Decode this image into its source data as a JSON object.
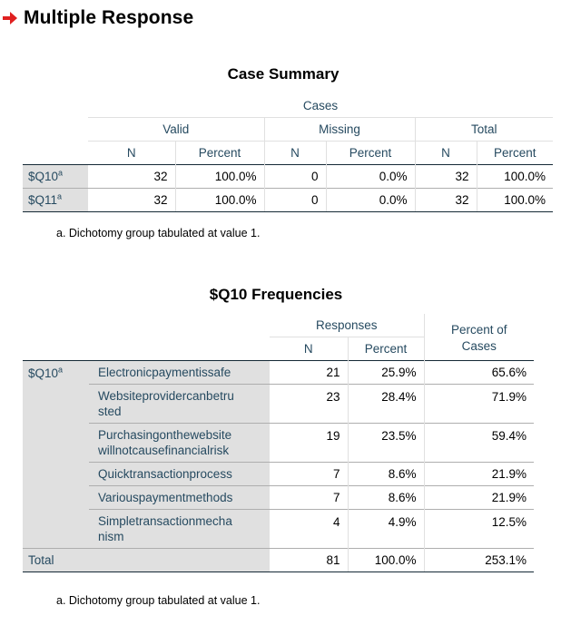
{
  "heading": {
    "title": "Multiple Response",
    "icon": "red-arrow-icon",
    "icon_color": "#e02020"
  },
  "case_summary": {
    "title": "Case Summary",
    "cases_label": "Cases",
    "groups": [
      "Valid",
      "Missing",
      "Total"
    ],
    "col_n": "N",
    "col_percent": "Percent",
    "rows": [
      {
        "label": "$Q10",
        "sup": "a",
        "valid_n": "32",
        "valid_pct": "100.0%",
        "missing_n": "0",
        "missing_pct": "0.0%",
        "total_n": "32",
        "total_pct": "100.0%"
      },
      {
        "label": "$Q11",
        "sup": "a",
        "valid_n": "32",
        "valid_pct": "100.0%",
        "missing_n": "0",
        "missing_pct": "0.0%",
        "total_n": "32",
        "total_pct": "100.0%"
      }
    ],
    "footnote": "a. Dichotomy group tabulated at value 1."
  },
  "frequencies": {
    "title": "$Q10 Frequencies",
    "responses_label": "Responses",
    "col_n": "N",
    "col_percent": "Percent",
    "col_percent_cases_line1": "Percent of",
    "col_percent_cases_line2": "Cases",
    "group_label": "$Q10",
    "group_sup": "a",
    "rows": [
      {
        "line1": "Electronicpaymentissafe",
        "line2": "",
        "n": "21",
        "pct": "25.9%",
        "pct_cases": "65.6%"
      },
      {
        "line1": "Websiteprovidercanbetru",
        "line2": "sted",
        "n": "23",
        "pct": "28.4%",
        "pct_cases": "71.9%"
      },
      {
        "line1": "Purchasingonthewebsite",
        "line2": "willnotcausefinancialrisk",
        "n": "19",
        "pct": "23.5%",
        "pct_cases": "59.4%"
      },
      {
        "line1": "Quicktransactionprocess",
        "line2": "",
        "n": "7",
        "pct": "8.6%",
        "pct_cases": "21.9%"
      },
      {
        "line1": "Variouspaymentmethods",
        "line2": "",
        "n": "7",
        "pct": "8.6%",
        "pct_cases": "21.9%"
      },
      {
        "line1": "Simpletransactionmecha",
        "line2": "nism",
        "n": "4",
        "pct": "4.9%",
        "pct_cases": "12.5%"
      }
    ],
    "total_label": "Total",
    "total_n": "81",
    "total_pct": "100.0%",
    "total_pct_cases": "253.1%",
    "footnote": "a. Dichotomy group tabulated at value 1."
  }
}
